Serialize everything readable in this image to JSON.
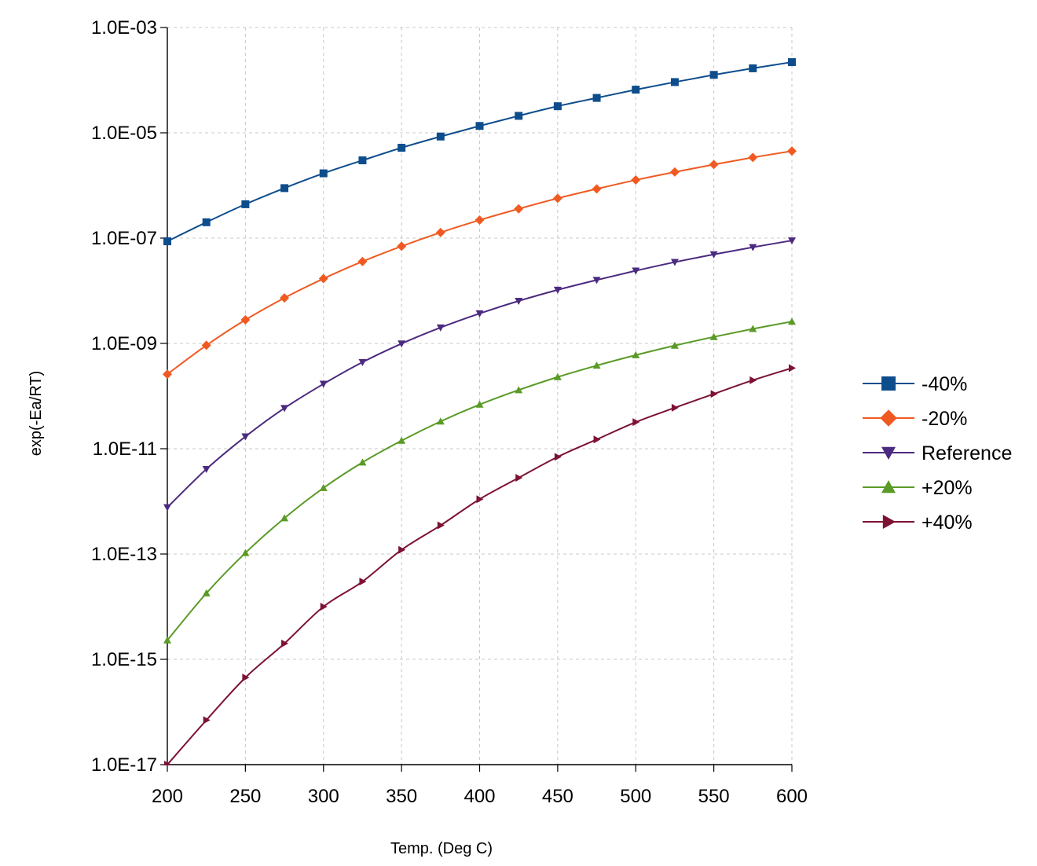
{
  "chart_data": {
    "type": "line",
    "title": "",
    "xlabel": "Temp. (Deg C)",
    "ylabel": "exp(-Ea/RT)",
    "xlim": [
      200,
      600
    ],
    "ylim": [
      1e-17,
      0.001
    ],
    "yscale": "log",
    "grid": true,
    "legend_position": "right",
    "x_ticks": [
      "200",
      "250",
      "300",
      "350",
      "400",
      "450",
      "500",
      "550",
      "600"
    ],
    "y_ticks": [
      "1.0E-03",
      "1.0E-05",
      "1.0E-07",
      "1.0E-09",
      "1.0E-11",
      "1.0E-13",
      "1.0E-15",
      "1.0E-17"
    ],
    "x": [
      200,
      225,
      250,
      275,
      300,
      325,
      350,
      375,
      400,
      425,
      450,
      475,
      500,
      525,
      550,
      575,
      600
    ],
    "series": [
      {
        "name": "-40%",
        "color": "#0e4d8c",
        "marker": "square",
        "values": [
          8.7e-08,
          2e-07,
          4.4e-07,
          8.9e-07,
          1.7e-06,
          3e-06,
          5.2e-06,
          8.5e-06,
          1.35e-05,
          2.1e-05,
          3.2e-05,
          4.6e-05,
          6.6e-05,
          9.2e-05,
          0.000126,
          0.000168,
          0.00022
        ]
      },
      {
        "name": "-20%",
        "color": "#f05a22",
        "marker": "diamond",
        "values": [
          2.6e-10,
          9.2e-10,
          2.8e-09,
          7.3e-09,
          1.7e-08,
          3.6e-08,
          7e-08,
          1.28e-07,
          2.2e-07,
          3.6e-07,
          5.7e-07,
          8.6e-07,
          1.27e-06,
          1.8e-06,
          2.5e-06,
          3.4e-06,
          4.5e-06
        ]
      },
      {
        "name": "Reference",
        "color": "#4b2a7f",
        "marker": "triangle-down",
        "values": [
          7.7e-13,
          4.1e-12,
          1.7e-11,
          5.9e-11,
          1.7e-10,
          4.4e-10,
          9.9e-10,
          2e-09,
          3.7e-09,
          6.4e-09,
          1.04e-08,
          1.6e-08,
          2.4e-08,
          3.5e-08,
          4.9e-08,
          6.7e-08,
          9e-08
        ]
      },
      {
        "name": "+20%",
        "color": "#5a9a26",
        "marker": "triangle-up",
        "values": [
          2.3e-15,
          1.8e-14,
          1.05e-13,
          4.8e-13,
          1.8e-12,
          5.5e-12,
          1.42e-11,
          3.3e-11,
          6.9e-11,
          1.3e-10,
          2.3e-10,
          3.8e-10,
          6e-10,
          9.1e-10,
          1.33e-09,
          1.89e-09,
          2.6e-09
        ]
      },
      {
        "name": "+40%",
        "color": "#7d1233",
        "marker": "triangle-right",
        "values": [
          1e-17,
          7e-17,
          4.5e-16,
          2e-15,
          1e-14,
          3e-14,
          1.2e-13,
          3.5e-13,
          1.1e-12,
          2.8e-12,
          7e-12,
          1.5e-11,
          3.2e-11,
          6e-11,
          1.1e-10,
          2e-10,
          3.4e-10
        ]
      }
    ]
  }
}
